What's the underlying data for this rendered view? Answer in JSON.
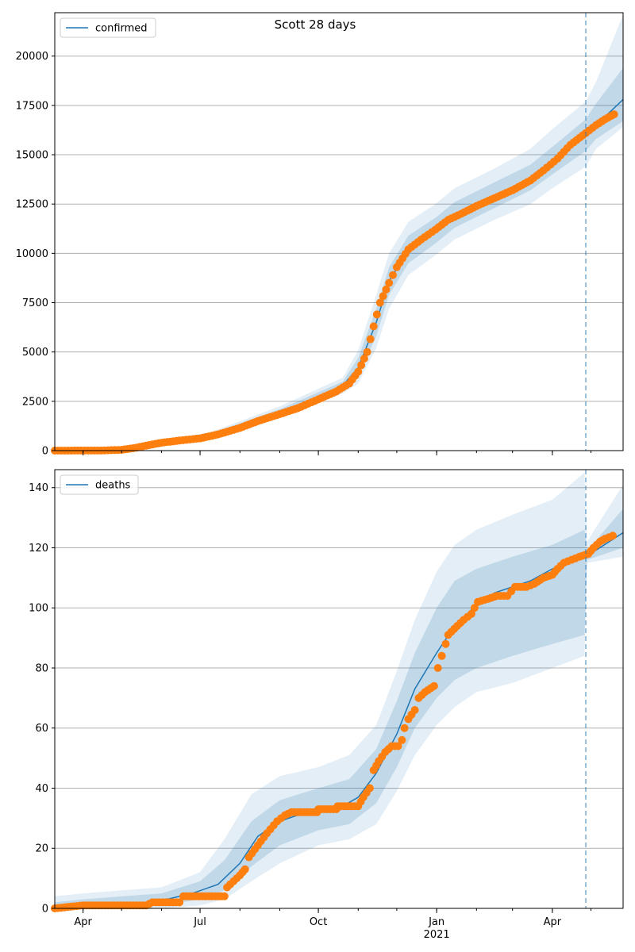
{
  "figure": {
    "suptitle": "Scott 28 days"
  },
  "colors": {
    "line": "#1f77b4",
    "observed": "#ff7f0e",
    "band": "#1f77b4",
    "grid": "#b0b0b0",
    "vline": "#1f77b4"
  },
  "chart_data": [
    {
      "type": "line",
      "panel": "confirmed",
      "legend": [
        "confirmed"
      ],
      "legend_placement": "top-left",
      "grid": "horizontal",
      "x_range": [
        "2020-03-10",
        "2021-05-26"
      ],
      "ylim": [
        0,
        22200
      ],
      "yticks": [
        0,
        2500,
        5000,
        7500,
        10000,
        12500,
        15000,
        17500,
        20000
      ],
      "xticks": [
        "2020-04-01",
        "2020-07-01",
        "2020-10-01",
        "2021-01-01",
        "2021-04-01"
      ],
      "forecast_start": "2021-04-27",
      "model_curve": [
        [
          "2020-03-10",
          0
        ],
        [
          "2020-04-10",
          10
        ],
        [
          "2020-05-01",
          40
        ],
        [
          "2020-05-20",
          280
        ],
        [
          "2020-06-15",
          550
        ],
        [
          "2020-07-10",
          800
        ],
        [
          "2020-08-01",
          1300
        ],
        [
          "2020-09-01",
          1950
        ],
        [
          "2020-10-01",
          2700
        ],
        [
          "2020-10-20",
          3300
        ],
        [
          "2020-11-01",
          4200
        ],
        [
          "2020-11-15",
          6500
        ],
        [
          "2020-11-25",
          8600
        ],
        [
          "2020-12-10",
          10200
        ],
        [
          "2020-12-31",
          11100
        ],
        [
          "2021-01-15",
          11900
        ],
        [
          "2021-02-15",
          12900
        ],
        [
          "2021-03-15",
          13800
        ],
        [
          "2021-04-01",
          14700
        ],
        [
          "2021-04-27",
          16000
        ],
        [
          "2021-05-26",
          17800
        ]
      ],
      "bands": [
        {
          "level": "outer",
          "lower": [
            [
              0,
              "2020-03-10"
            ]
          ],
          "note": ""
        }
      ],
      "band_points": [
        [
          "2020-03-10",
          0,
          0,
          0,
          0
        ],
        [
          "2020-05-01",
          20,
          60,
          0,
          120
        ],
        [
          "2020-07-10",
          720,
          880,
          650,
          960
        ],
        [
          "2020-09-01",
          1800,
          2100,
          1650,
          2250
        ],
        [
          "2020-10-20",
          3100,
          3500,
          2900,
          3700
        ],
        [
          "2020-11-01",
          3800,
          4700,
          3400,
          5100
        ],
        [
          "2020-11-15",
          5800,
          7200,
          5200,
          7900
        ],
        [
          "2020-11-25",
          7900,
          9300,
          7200,
          10000
        ],
        [
          "2020-12-10",
          9500,
          10900,
          8900,
          11600
        ],
        [
          "2020-12-31",
          10500,
          11800,
          9900,
          12500
        ],
        [
          "2021-01-15",
          11300,
          12600,
          10700,
          13300
        ],
        [
          "2021-02-15",
          12300,
          13600,
          11700,
          14300
        ],
        [
          "2021-03-15",
          13200,
          14500,
          12500,
          15300
        ],
        [
          "2021-04-01",
          14000,
          15400,
          13300,
          16300
        ],
        [
          "2021-04-27",
          15200,
          16800,
          14400,
          17700
        ],
        [
          "2021-05-05",
          15800,
          17600,
          15300,
          18700
        ],
        [
          "2021-05-26",
          16700,
          19400,
          16400,
          22100
        ]
      ],
      "observed": [
        [
          "2020-03-10",
          0
        ],
        [
          "2020-04-15",
          5
        ],
        [
          "2020-05-01",
          40
        ],
        [
          "2020-05-10",
          120
        ],
        [
          "2020-05-20",
          250
        ],
        [
          "2020-06-01",
          400
        ],
        [
          "2020-06-15",
          510
        ],
        [
          "2020-07-01",
          620
        ],
        [
          "2020-07-15",
          820
        ],
        [
          "2020-08-01",
          1150
        ],
        [
          "2020-08-15",
          1500
        ],
        [
          "2020-09-01",
          1850
        ],
        [
          "2020-09-15",
          2150
        ],
        [
          "2020-10-01",
          2600
        ],
        [
          "2020-10-15",
          3000
        ],
        [
          "2020-10-25",
          3400
        ],
        [
          "2020-11-01",
          4000
        ],
        [
          "2020-11-08",
          5000
        ],
        [
          "2020-11-13",
          6300
        ],
        [
          "2020-11-18",
          7500
        ],
        [
          "2020-11-25",
          8500
        ],
        [
          "2020-12-01",
          9300
        ],
        [
          "2020-12-10",
          10200
        ],
        [
          "2020-12-20",
          10700
        ],
        [
          "2020-12-31",
          11200
        ],
        [
          "2021-01-10",
          11700
        ],
        [
          "2021-01-20",
          12000
        ],
        [
          "2021-02-01",
          12400
        ],
        [
          "2021-02-15",
          12800
        ],
        [
          "2021-03-01",
          13200
        ],
        [
          "2021-03-15",
          13700
        ],
        [
          "2021-03-25",
          14200
        ],
        [
          "2021-04-05",
          14800
        ],
        [
          "2021-04-15",
          15500
        ],
        [
          "2021-04-27",
          16100
        ],
        [
          "2021-05-05",
          16500
        ],
        [
          "2021-05-12",
          16800
        ],
        [
          "2021-05-19",
          17050
        ]
      ]
    },
    {
      "type": "line",
      "panel": "deaths",
      "legend": [
        "deaths"
      ],
      "legend_placement": "top-left",
      "grid": "horizontal",
      "x_range": [
        "2020-03-10",
        "2021-05-26"
      ],
      "ylim": [
        0,
        146
      ],
      "yticks": [
        0,
        20,
        40,
        60,
        80,
        100,
        120,
        140
      ],
      "xticks": [
        "2020-04-01",
        "2020-07-01",
        "2020-10-01",
        "2021-01-01",
        "2021-04-01"
      ],
      "xtick_labels": [
        "Apr",
        "Jul",
        "Oct",
        "Jan",
        "Apr"
      ],
      "xtick_year_label": "2021",
      "forecast_start": "2021-04-27",
      "model_curve": [
        [
          "2020-03-10",
          0
        ],
        [
          "2020-04-01",
          1
        ],
        [
          "2020-05-15",
          1
        ],
        [
          "2020-06-05",
          3
        ],
        [
          "2020-06-25",
          5
        ],
        [
          "2020-07-15",
          8
        ],
        [
          "2020-08-01",
          15
        ],
        [
          "2020-08-15",
          24
        ],
        [
          "2020-09-01",
          29
        ],
        [
          "2020-09-15",
          31
        ],
        [
          "2020-10-01",
          33
        ],
        [
          "2020-10-20",
          34
        ],
        [
          "2020-11-01",
          37
        ],
        [
          "2020-11-15",
          45
        ],
        [
          "2020-12-01",
          58
        ],
        [
          "2020-12-15",
          73
        ],
        [
          "2021-01-01",
          85
        ],
        [
          "2021-01-15",
          94
        ],
        [
          "2021-02-01",
          101
        ],
        [
          "2021-02-15",
          105
        ],
        [
          "2021-03-01",
          107
        ],
        [
          "2021-03-15",
          109
        ],
        [
          "2021-04-01",
          113
        ],
        [
          "2021-04-27",
          117
        ],
        [
          "2021-05-26",
          125
        ]
      ],
      "band_points": [
        [
          "2020-03-10",
          0,
          2,
          0,
          4
        ],
        [
          "2020-04-01",
          0,
          3,
          0,
          5
        ],
        [
          "2020-06-01",
          1,
          5,
          0,
          7
        ],
        [
          "2020-07-01",
          3,
          9,
          1,
          12
        ],
        [
          "2020-07-20",
          6,
          16,
          3,
          23
        ],
        [
          "2020-08-10",
          14,
          29,
          9,
          38
        ],
        [
          "2020-09-01",
          21,
          36,
          15,
          44
        ],
        [
          "2020-10-01",
          26,
          40,
          21,
          47
        ],
        [
          "2020-10-25",
          28,
          43,
          23,
          51
        ],
        [
          "2020-11-15",
          35,
          53,
          28,
          61
        ],
        [
          "2020-12-01",
          47,
          69,
          39,
          79
        ],
        [
          "2020-12-15",
          60,
          85,
          51,
          96
        ],
        [
          "2021-01-01",
          70,
          100,
          61,
          112
        ],
        [
          "2021-01-15",
          76,
          109,
          67,
          121
        ],
        [
          "2021-02-01",
          80,
          113,
          72,
          126
        ],
        [
          "2021-03-01",
          84,
          117,
          75,
          131
        ],
        [
          "2021-04-01",
          88,
          121,
          80,
          136
        ],
        [
          "2021-04-26",
          91,
          126,
          84,
          145
        ],
        [
          "2021-04-28",
          116,
          119,
          115,
          122
        ],
        [
          "2021-05-26",
          120,
          133,
          117,
          141
        ]
      ],
      "observed": [
        [
          "2020-03-10",
          0
        ],
        [
          "2020-04-01",
          1
        ],
        [
          "2020-05-20",
          1
        ],
        [
          "2020-05-25",
          2
        ],
        [
          "2020-06-15",
          2
        ],
        [
          "2020-06-18",
          4
        ],
        [
          "2020-07-20",
          4
        ],
        [
          "2020-07-22",
          7
        ],
        [
          "2020-08-01",
          11
        ],
        [
          "2020-08-05",
          13
        ],
        [
          "2020-08-08",
          17
        ],
        [
          "2020-08-15",
          21
        ],
        [
          "2020-08-22",
          25
        ],
        [
          "2020-08-30",
          29
        ],
        [
          "2020-09-05",
          31
        ],
        [
          "2020-09-10",
          32
        ],
        [
          "2020-09-30",
          32
        ],
        [
          "2020-10-01",
          33
        ],
        [
          "2020-10-15",
          33
        ],
        [
          "2020-10-16",
          34
        ],
        [
          "2020-11-01",
          34
        ],
        [
          "2020-11-05",
          37
        ],
        [
          "2020-11-10",
          40
        ],
        [
          "2020-11-13",
          46
        ],
        [
          "2020-11-17",
          49
        ],
        [
          "2020-11-22",
          52
        ],
        [
          "2020-11-27",
          54
        ],
        [
          "2020-12-02",
          54
        ],
        [
          "2020-12-05",
          56
        ],
        [
          "2020-12-07",
          60
        ],
        [
          "2020-12-10",
          63
        ],
        [
          "2020-12-15",
          66
        ],
        [
          "2020-12-18",
          70
        ],
        [
          "2020-12-23",
          72
        ],
        [
          "2020-12-30",
          74
        ],
        [
          "2021-01-02",
          80
        ],
        [
          "2021-01-05",
          84
        ],
        [
          "2021-01-08",
          88
        ],
        [
          "2021-01-10",
          91
        ],
        [
          "2021-01-17",
          94
        ],
        [
          "2021-01-22",
          96
        ],
        [
          "2021-01-28",
          98
        ],
        [
          "2021-02-02",
          102
        ],
        [
          "2021-02-10",
          103
        ],
        [
          "2021-02-17",
          104
        ],
        [
          "2021-02-25",
          104
        ],
        [
          "2021-03-03",
          107
        ],
        [
          "2021-03-12",
          107
        ],
        [
          "2021-03-18",
          108
        ],
        [
          "2021-03-25",
          110
        ],
        [
          "2021-04-01",
          111
        ],
        [
          "2021-04-05",
          113
        ],
        [
          "2021-04-10",
          115
        ],
        [
          "2021-04-16",
          116
        ],
        [
          "2021-04-22",
          117
        ],
        [
          "2021-04-29",
          118
        ],
        [
          "2021-05-03",
          120
        ],
        [
          "2021-05-08",
          122
        ],
        [
          "2021-05-12",
          123
        ],
        [
          "2021-05-18",
          124
        ]
      ]
    }
  ]
}
